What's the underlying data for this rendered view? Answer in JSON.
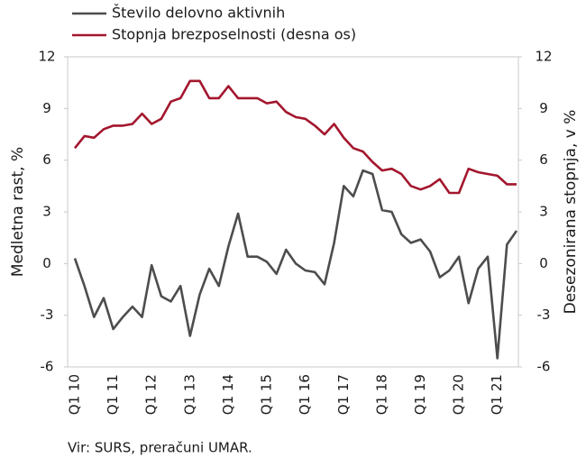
{
  "chart_data": {
    "type": "line",
    "y_label": "Medletna rast, %",
    "y2_label": "Desezonirana stopnja, v %",
    "source": "Vir: SURS, preračuni UMAR.",
    "categories": [
      "Q1 10",
      null,
      null,
      null,
      "Q1 11",
      null,
      null,
      null,
      "Q1 12",
      null,
      null,
      null,
      "Q1 13",
      null,
      null,
      null,
      "Q1 14",
      null,
      null,
      null,
      "Q1 15",
      null,
      null,
      null,
      "Q1 16",
      null,
      null,
      null,
      "Q1 17",
      null,
      null,
      null,
      "Q1 18",
      null,
      null,
      null,
      "Q1 19",
      null,
      null,
      null,
      "Q1 20",
      null,
      null,
      null,
      "Q1 21",
      null,
      null
    ],
    "series": [
      {
        "name": "Število delovno aktivnih",
        "color": "#4d4d4d",
        "values": [
          0.3,
          -1.3,
          -3.1,
          -2.0,
          -3.8,
          -3.1,
          -2.5,
          -3.1,
          -0.1,
          -1.9,
          -2.2,
          -1.3,
          -4.2,
          -1.8,
          -0.3,
          -1.3,
          1.0,
          2.9,
          0.4,
          0.4,
          0.1,
          -0.6,
          0.8,
          0.0,
          -0.4,
          -0.5,
          -1.2,
          1.2,
          4.5,
          3.9,
          5.4,
          5.2,
          3.1,
          3.0,
          1.7,
          1.2,
          1.4,
          0.7,
          -0.8,
          -0.4,
          0.4,
          -2.3,
          -0.3,
          0.4,
          -5.5,
          1.1,
          1.9
        ]
      },
      {
        "name": "Stopnja brezposelnosti (desna os)",
        "color": "#a3162d",
        "axis": "y2",
        "values": [
          6.7,
          7.4,
          7.3,
          7.8,
          8.0,
          8.0,
          8.1,
          8.7,
          8.1,
          8.4,
          9.4,
          9.6,
          10.6,
          10.6,
          9.6,
          9.6,
          10.3,
          9.6,
          9.6,
          9.6,
          9.3,
          9.4,
          8.8,
          8.5,
          8.4,
          8.0,
          7.5,
          8.1,
          7.3,
          6.7,
          6.5,
          5.9,
          5.4,
          5.5,
          5.2,
          4.5,
          4.3,
          4.5,
          4.9,
          4.1,
          4.1,
          5.5,
          5.3,
          5.2,
          5.1,
          4.6,
          4.6
        ]
      }
    ],
    "ylim": [
      -6,
      12
    ],
    "yticks": [
      12,
      9,
      6,
      3,
      0,
      -3,
      -6
    ],
    "y2lim": [
      -6,
      12
    ],
    "y2ticks": [
      12,
      9,
      6,
      3,
      0,
      -3,
      -6
    ],
    "legend": "top"
  }
}
